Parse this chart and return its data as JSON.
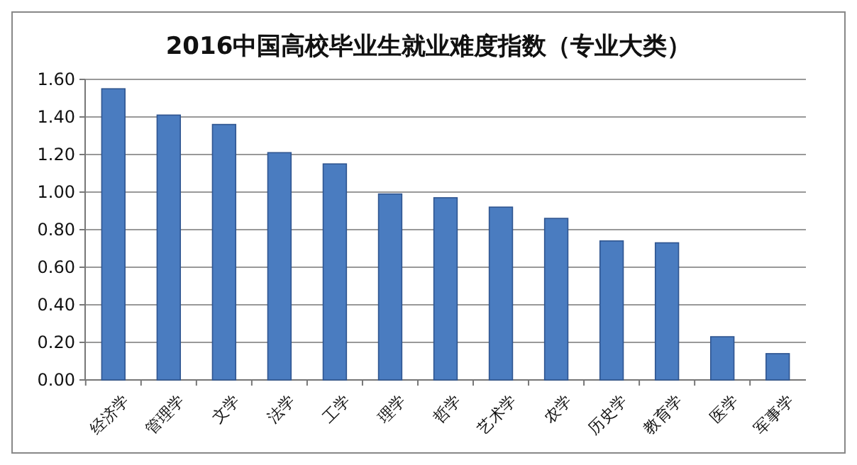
{
  "chart_data": {
    "type": "bar",
    "title": "2016中国高校毕业生就业难度指数（专业大类）",
    "categories": [
      "经济学",
      "管理学",
      "文学",
      "法学",
      "工学",
      "理学",
      "哲学",
      "艺术学",
      "农学",
      "历史学",
      "教育学",
      "医学",
      "军事学"
    ],
    "values": [
      1.55,
      1.41,
      1.36,
      1.21,
      1.15,
      0.99,
      0.97,
      0.92,
      0.86,
      0.74,
      0.73,
      0.23,
      0.14
    ],
    "color": "#4a7cc0",
    "ylim": [
      0,
      1.6
    ],
    "yticks": [
      {
        "value": 0,
        "label": "0.00"
      },
      {
        "value": 0.2,
        "label": "0.20"
      },
      {
        "value": 0.4,
        "label": "0.40"
      },
      {
        "value": 0.6,
        "label": "0.60"
      },
      {
        "value": 0.8,
        "label": "0.80"
      },
      {
        "value": 1,
        "label": "1.00"
      },
      {
        "value": 1.2,
        "label": "1.20"
      },
      {
        "value": 1.4,
        "label": "1.40"
      },
      {
        "value": 1.6,
        "label": "1.60"
      }
    ],
    "grid": true
  }
}
